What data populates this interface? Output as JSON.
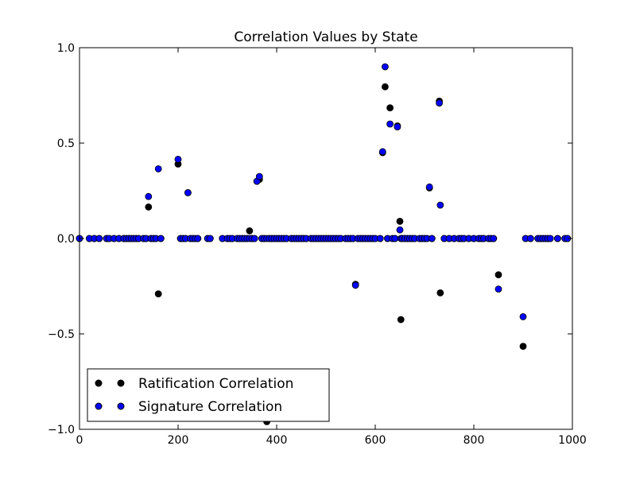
{
  "chart_data": {
    "type": "scatter",
    "title": "Correlation Values by State",
    "xlabel": "",
    "ylabel": "",
    "xlim": [
      0,
      1000
    ],
    "ylim": [
      -1.0,
      1.0
    ],
    "x_ticks": [
      "0",
      "200",
      "400",
      "600",
      "800",
      "1000"
    ],
    "y_ticks": [
      "1.0",
      "0.5",
      "0.0",
      "−0.5",
      "−1.0"
    ],
    "grid": false,
    "legend_position": "lower-left",
    "series": [
      {
        "name": "Ratification Correlation",
        "color": "#000000",
        "points": [
          [
            0,
            0
          ],
          [
            20,
            0
          ],
          [
            30,
            0
          ],
          [
            40,
            0
          ],
          [
            55,
            0
          ],
          [
            60,
            0
          ],
          [
            70,
            0
          ],
          [
            80,
            0
          ],
          [
            90,
            0
          ],
          [
            95,
            0
          ],
          [
            100,
            0
          ],
          [
            105,
            0
          ],
          [
            110,
            0
          ],
          [
            115,
            0
          ],
          [
            120,
            0
          ],
          [
            130,
            0
          ],
          [
            135,
            0
          ],
          [
            145,
            0
          ],
          [
            150,
            0
          ],
          [
            155,
            0
          ],
          [
            165,
            0
          ],
          [
            140,
            0.165
          ],
          [
            160,
            -0.29
          ],
          [
            200,
            0.39
          ],
          [
            220,
            0.24
          ],
          [
            205,
            0
          ],
          [
            210,
            0
          ],
          [
            215,
            0
          ],
          [
            225,
            0
          ],
          [
            230,
            0
          ],
          [
            235,
            0
          ],
          [
            240,
            0
          ],
          [
            260,
            0
          ],
          [
            265,
            0
          ],
          [
            290,
            0
          ],
          [
            300,
            0
          ],
          [
            305,
            0
          ],
          [
            310,
            0
          ],
          [
            320,
            0
          ],
          [
            325,
            0
          ],
          [
            330,
            0
          ],
          [
            335,
            0
          ],
          [
            340,
            0
          ],
          [
            350,
            0
          ],
          [
            355,
            0
          ],
          [
            345,
            0.04
          ],
          [
            360,
            0.3
          ],
          [
            365,
            0.31
          ],
          [
            380,
            -0.96
          ],
          [
            370,
            0
          ],
          [
            375,
            0
          ],
          [
            385,
            0
          ],
          [
            390,
            0
          ],
          [
            395,
            0
          ],
          [
            400,
            0
          ],
          [
            405,
            0
          ],
          [
            410,
            0
          ],
          [
            415,
            0
          ],
          [
            420,
            0
          ],
          [
            430,
            0
          ],
          [
            435,
            0
          ],
          [
            440,
            0
          ],
          [
            445,
            0
          ],
          [
            450,
            0
          ],
          [
            455,
            0
          ],
          [
            460,
            0
          ],
          [
            470,
            0
          ],
          [
            475,
            0
          ],
          [
            480,
            0
          ],
          [
            485,
            0
          ],
          [
            490,
            0
          ],
          [
            495,
            0
          ],
          [
            500,
            0
          ],
          [
            505,
            0
          ],
          [
            510,
            0
          ],
          [
            515,
            0
          ],
          [
            520,
            0
          ],
          [
            525,
            0
          ],
          [
            530,
            0
          ],
          [
            540,
            0
          ],
          [
            545,
            0
          ],
          [
            550,
            0
          ],
          [
            555,
            0
          ],
          [
            560,
            -0.24
          ],
          [
            565,
            0
          ],
          [
            570,
            0
          ],
          [
            575,
            0
          ],
          [
            580,
            0
          ],
          [
            585,
            0
          ],
          [
            590,
            0
          ],
          [
            595,
            0
          ],
          [
            600,
            0
          ],
          [
            610,
            0
          ],
          [
            615,
            0.45
          ],
          [
            620,
            0.795
          ],
          [
            630,
            0.685
          ],
          [
            645,
            0.59
          ],
          [
            650,
            0.09
          ],
          [
            652,
            -0.425
          ],
          [
            625,
            0
          ],
          [
            635,
            0
          ],
          [
            640,
            0
          ],
          [
            655,
            0
          ],
          [
            660,
            0
          ],
          [
            665,
            0
          ],
          [
            670,
            0
          ],
          [
            675,
            0
          ],
          [
            680,
            0
          ],
          [
            690,
            0
          ],
          [
            695,
            0
          ],
          [
            700,
            0
          ],
          [
            705,
            0
          ],
          [
            715,
            0
          ],
          [
            710,
            0.265
          ],
          [
            730,
            0.72
          ],
          [
            732,
            -0.285
          ],
          [
            740,
            0
          ],
          [
            750,
            0
          ],
          [
            760,
            0
          ],
          [
            770,
            0
          ],
          [
            775,
            0
          ],
          [
            780,
            0
          ],
          [
            790,
            0
          ],
          [
            800,
            0
          ],
          [
            810,
            0
          ],
          [
            815,
            0
          ],
          [
            820,
            0
          ],
          [
            830,
            0
          ],
          [
            835,
            0
          ],
          [
            840,
            0
          ],
          [
            850,
            -0.19
          ],
          [
            900,
            -0.565
          ],
          [
            905,
            0
          ],
          [
            915,
            0
          ],
          [
            930,
            0
          ],
          [
            935,
            0
          ],
          [
            940,
            0
          ],
          [
            945,
            0
          ],
          [
            950,
            0
          ],
          [
            955,
            0
          ],
          [
            970,
            0
          ],
          [
            985,
            0
          ],
          [
            990,
            0
          ]
        ]
      },
      {
        "name": "Signature Correlation",
        "color": "#0000ff",
        "points": [
          [
            0,
            0
          ],
          [
            20,
            0
          ],
          [
            30,
            0
          ],
          [
            40,
            0
          ],
          [
            55,
            0
          ],
          [
            60,
            0
          ],
          [
            70,
            0
          ],
          [
            80,
            0
          ],
          [
            90,
            0
          ],
          [
            95,
            0
          ],
          [
            100,
            0
          ],
          [
            105,
            0
          ],
          [
            110,
            0
          ],
          [
            115,
            0
          ],
          [
            120,
            0
          ],
          [
            130,
            0
          ],
          [
            135,
            0
          ],
          [
            145,
            0
          ],
          [
            150,
            0
          ],
          [
            155,
            0
          ],
          [
            165,
            0
          ],
          [
            140,
            0.22
          ],
          [
            160,
            0.365
          ],
          [
            200,
            0.415
          ],
          [
            220,
            0.24
          ],
          [
            205,
            0
          ],
          [
            210,
            0
          ],
          [
            215,
            0
          ],
          [
            225,
            0
          ],
          [
            230,
            0
          ],
          [
            235,
            0
          ],
          [
            240,
            0
          ],
          [
            260,
            0
          ],
          [
            265,
            0
          ],
          [
            290,
            0
          ],
          [
            300,
            0
          ],
          [
            305,
            0
          ],
          [
            310,
            0
          ],
          [
            320,
            0
          ],
          [
            325,
            0
          ],
          [
            330,
            0
          ],
          [
            335,
            0
          ],
          [
            340,
            0
          ],
          [
            345,
            0
          ],
          [
            350,
            0
          ],
          [
            355,
            0
          ],
          [
            360,
            0.3
          ],
          [
            365,
            0.325
          ],
          [
            370,
            0
          ],
          [
            375,
            0
          ],
          [
            380,
            0
          ],
          [
            385,
            0
          ],
          [
            390,
            0
          ],
          [
            395,
            0
          ],
          [
            400,
            0
          ],
          [
            405,
            0
          ],
          [
            410,
            0
          ],
          [
            415,
            0
          ],
          [
            420,
            0
          ],
          [
            430,
            0
          ],
          [
            435,
            0
          ],
          [
            440,
            0
          ],
          [
            445,
            0
          ],
          [
            450,
            0
          ],
          [
            455,
            0
          ],
          [
            460,
            0
          ],
          [
            470,
            0
          ],
          [
            475,
            0
          ],
          [
            480,
            0
          ],
          [
            485,
            0
          ],
          [
            490,
            0
          ],
          [
            495,
            0
          ],
          [
            500,
            0
          ],
          [
            505,
            0
          ],
          [
            510,
            0
          ],
          [
            515,
            0
          ],
          [
            520,
            0
          ],
          [
            525,
            0
          ],
          [
            530,
            0
          ],
          [
            540,
            0
          ],
          [
            545,
            0
          ],
          [
            550,
            0
          ],
          [
            555,
            0
          ],
          [
            560,
            -0.245
          ],
          [
            565,
            0
          ],
          [
            570,
            0
          ],
          [
            575,
            0
          ],
          [
            580,
            0
          ],
          [
            585,
            0
          ],
          [
            590,
            0
          ],
          [
            595,
            0
          ],
          [
            600,
            0
          ],
          [
            610,
            0
          ],
          [
            615,
            0.455
          ],
          [
            620,
            0.9
          ],
          [
            630,
            0.6
          ],
          [
            645,
            0.585
          ],
          [
            650,
            0.045
          ],
          [
            652,
            0
          ],
          [
            625,
            0
          ],
          [
            635,
            0
          ],
          [
            640,
            0
          ],
          [
            655,
            0
          ],
          [
            660,
            0
          ],
          [
            665,
            0
          ],
          [
            670,
            0
          ],
          [
            675,
            0
          ],
          [
            680,
            0
          ],
          [
            690,
            0
          ],
          [
            695,
            0
          ],
          [
            700,
            0
          ],
          [
            705,
            0
          ],
          [
            715,
            0
          ],
          [
            710,
            0.27
          ],
          [
            730,
            0.71
          ],
          [
            732,
            0.175
          ],
          [
            740,
            0
          ],
          [
            750,
            0
          ],
          [
            760,
            0
          ],
          [
            770,
            0
          ],
          [
            775,
            0
          ],
          [
            780,
            0
          ],
          [
            790,
            0
          ],
          [
            800,
            0
          ],
          [
            810,
            0
          ],
          [
            815,
            0
          ],
          [
            820,
            0
          ],
          [
            830,
            0
          ],
          [
            835,
            0
          ],
          [
            840,
            0
          ],
          [
            850,
            -0.265
          ],
          [
            900,
            -0.41
          ],
          [
            905,
            0
          ],
          [
            915,
            0
          ],
          [
            930,
            0
          ],
          [
            935,
            0
          ],
          [
            940,
            0
          ],
          [
            945,
            0
          ],
          [
            950,
            0
          ],
          [
            955,
            0
          ],
          [
            970,
            0
          ],
          [
            985,
            0
          ],
          [
            990,
            0
          ]
        ]
      }
    ]
  }
}
